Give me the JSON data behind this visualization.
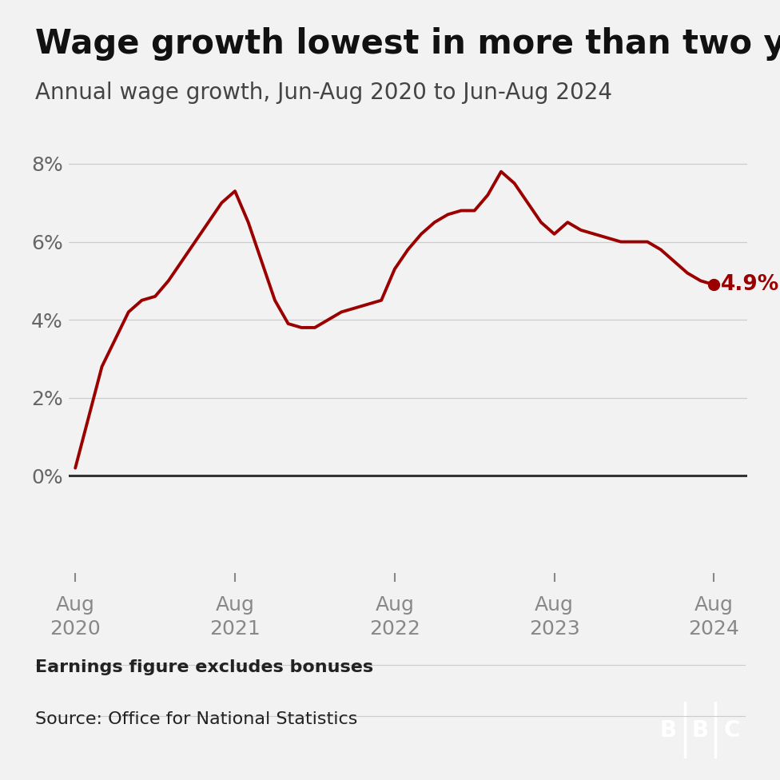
{
  "title": "Wage growth lowest in more than two years",
  "subtitle": "Annual wage growth, Jun-Aug 2020 to Jun-Aug 2024",
  "footnote": "Earnings figure excludes bonuses",
  "source": "Source: Office for National Statistics",
  "line_color": "#9b0000",
  "background_color": "#f2f2f2",
  "last_value_label": "4.9%",
  "ytick_values": [
    0,
    2,
    4,
    6,
    8
  ],
  "xtick_labels": [
    "Aug\n2020",
    "Aug\n2021",
    "Aug\n2022",
    "Aug\n2023",
    "Aug\n2024"
  ],
  "xtick_positions": [
    0,
    12,
    24,
    36,
    48
  ],
  "x": [
    0,
    1,
    2,
    3,
    4,
    5,
    6,
    7,
    8,
    9,
    10,
    11,
    12,
    13,
    14,
    15,
    16,
    17,
    18,
    19,
    20,
    21,
    22,
    23,
    24,
    25,
    26,
    27,
    28,
    29,
    30,
    31,
    32,
    33,
    34,
    35,
    36,
    37,
    38,
    39,
    40,
    41,
    42,
    43,
    44,
    45,
    46,
    47,
    48
  ],
  "y": [
    0.2,
    1.5,
    2.8,
    3.5,
    4.2,
    4.5,
    4.6,
    5.0,
    5.5,
    6.0,
    6.5,
    7.0,
    7.3,
    6.5,
    5.5,
    4.5,
    3.9,
    3.8,
    3.8,
    4.0,
    4.2,
    4.3,
    4.4,
    4.5,
    5.3,
    5.8,
    6.2,
    6.5,
    6.7,
    6.8,
    6.8,
    7.2,
    7.8,
    7.5,
    7.0,
    6.5,
    6.2,
    6.5,
    6.3,
    6.2,
    6.1,
    6.0,
    6.0,
    6.0,
    5.8,
    5.5,
    5.2,
    5.0,
    4.9
  ]
}
